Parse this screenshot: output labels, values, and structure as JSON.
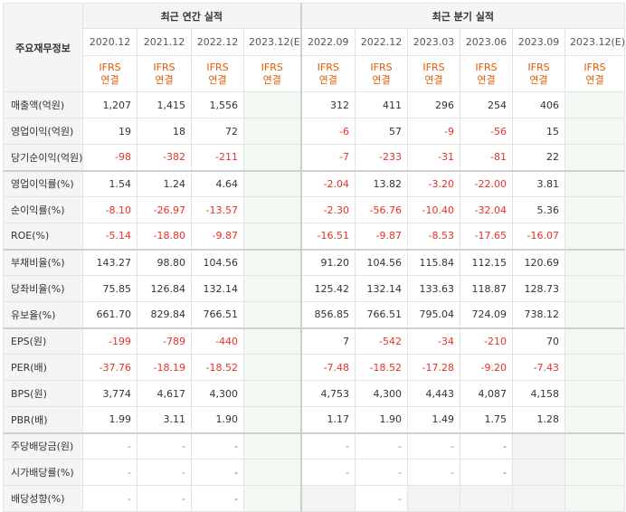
{
  "header": {
    "corner": "주요재무정보",
    "annual_title": "최근 연간 실적",
    "quarter_title": "최근 분기 실적",
    "periods": [
      "2020.12",
      "2021.12",
      "2022.12",
      "2023.12(E)",
      "2022.09",
      "2022.12",
      "2023.03",
      "2023.06",
      "2023.09",
      "2023.12(E)"
    ],
    "ifrs": "IFRS",
    "consol": "연결"
  },
  "rows": [
    {
      "label": "매출액(억원)",
      "values": [
        "1,207",
        "1,415",
        "1,556",
        "",
        "312",
        "411",
        "296",
        "254",
        "406",
        ""
      ]
    },
    {
      "label": "영업이익(억원)",
      "values": [
        "19",
        "18",
        "72",
        "",
        "-6",
        "57",
        "-9",
        "-56",
        "15",
        ""
      ]
    },
    {
      "label": "당기순이익(억원)",
      "values": [
        "-98",
        "-382",
        "-211",
        "",
        "-7",
        "-233",
        "-31",
        "-81",
        "22",
        ""
      ]
    },
    {
      "label": "영업이익률(%)",
      "values": [
        "1.54",
        "1.24",
        "4.64",
        "",
        "-2.04",
        "13.82",
        "-3.20",
        "-22.00",
        "3.81",
        ""
      ]
    },
    {
      "label": "순이익률(%)",
      "values": [
        "-8.10",
        "-26.97",
        "-13.57",
        "",
        "-2.30",
        "-56.76",
        "-10.40",
        "-32.04",
        "5.36",
        ""
      ]
    },
    {
      "label": "ROE(%)",
      "values": [
        "-5.14",
        "-18.80",
        "-9.87",
        "",
        "-16.51",
        "-9.87",
        "-8.53",
        "-17.65",
        "-16.07",
        ""
      ]
    },
    {
      "label": "부채비율(%)",
      "values": [
        "143.27",
        "98.80",
        "104.56",
        "",
        "91.20",
        "104.56",
        "115.84",
        "112.15",
        "120.69",
        ""
      ]
    },
    {
      "label": "당좌비율(%)",
      "values": [
        "75.85",
        "126.84",
        "132.14",
        "",
        "125.42",
        "132.14",
        "133.63",
        "118.87",
        "128.73",
        ""
      ]
    },
    {
      "label": "유보율(%)",
      "values": [
        "661.70",
        "829.84",
        "766.51",
        "",
        "856.85",
        "766.51",
        "795.04",
        "724.09",
        "738.12",
        ""
      ]
    },
    {
      "label": "EPS(원)",
      "values": [
        "-199",
        "-789",
        "-440",
        "",
        "7",
        "-542",
        "-34",
        "-210",
        "70",
        ""
      ]
    },
    {
      "label": "PER(배)",
      "values": [
        "-37.76",
        "-18.19",
        "-18.52",
        "",
        "-7.48",
        "-18.52",
        "-17.28",
        "-9.20",
        "-7.43",
        ""
      ]
    },
    {
      "label": "BPS(원)",
      "values": [
        "3,774",
        "4,617",
        "4,300",
        "",
        "4,753",
        "4,300",
        "4,443",
        "4,087",
        "4,158",
        ""
      ]
    },
    {
      "label": "PBR(배)",
      "values": [
        "1.99",
        "3.11",
        "1.90",
        "",
        "1.17",
        "1.90",
        "1.49",
        "1.75",
        "1.28",
        ""
      ]
    },
    {
      "label": "주당배당금(원)",
      "values": [
        "-",
        "-",
        "-",
        "",
        "-",
        "-",
        "-",
        "-",
        "",
        ""
      ]
    },
    {
      "label": "시가배당률(%)",
      "values": [
        "-",
        "-",
        "-",
        "",
        "-",
        "-",
        "-",
        "-",
        "",
        ""
      ]
    },
    {
      "label": "배당성향(%)",
      "values": [
        "-",
        "-",
        "-",
        "",
        "",
        "-",
        "",
        "",
        "",
        ""
      ]
    }
  ]
}
